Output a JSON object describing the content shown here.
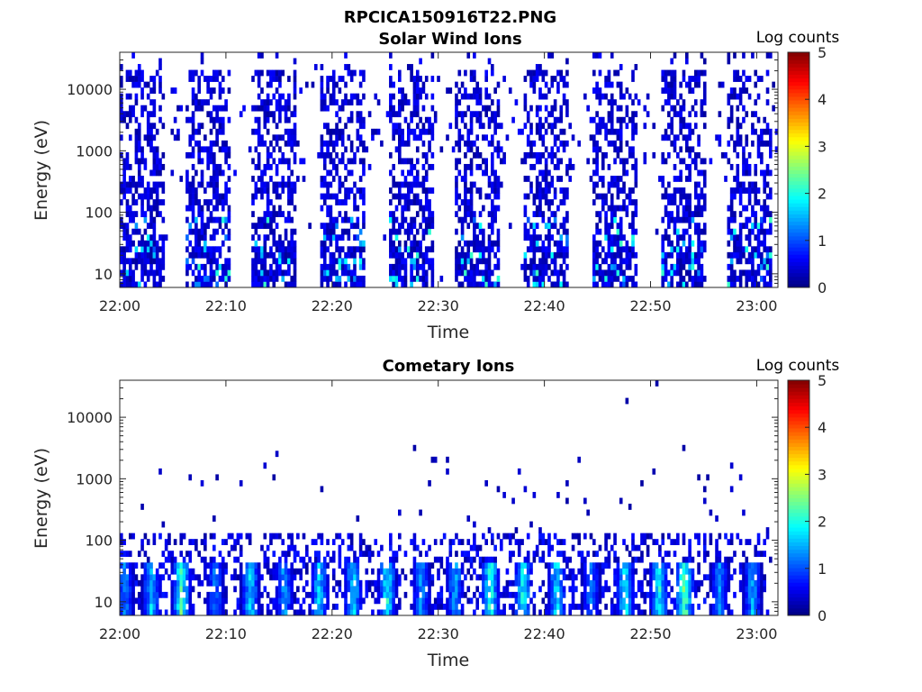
{
  "figure_title": "RPCICA150916T22.PNG",
  "chart_data": [
    {
      "type": "heatmap",
      "title": "Solar Wind Ions",
      "xlabel": "Time",
      "ylabel": "Energy (eV)",
      "x_ticks": [
        "22:00",
        "22:10",
        "22:20",
        "22:30",
        "22:40",
        "22:50",
        "23:00"
      ],
      "x_tick_minutes": [
        0,
        10,
        20,
        30,
        40,
        50,
        60
      ],
      "xlim_minutes": [
        0,
        62
      ],
      "y_scale": "log",
      "y_ticks": [
        "10",
        "100",
        "1000",
        "10000"
      ],
      "y_tick_values": [
        10,
        100,
        1000,
        10000
      ],
      "ylim": [
        6,
        40000
      ],
      "colorbar": {
        "label": "Log counts",
        "ticks": [
          "0",
          "1",
          "2",
          "3",
          "4",
          "5"
        ],
        "range": [
          0,
          5
        ],
        "colormap": "jet"
      },
      "sweep_centers_minutes": [
        2,
        8.3,
        14.6,
        21,
        27.4,
        33.7,
        40.2,
        46.6,
        53,
        59.2
      ],
      "sweep_width_minutes": 4.2,
      "sparse_energy_range_eV": [
        300,
        15000
      ],
      "peak_log_counts": 2.2
    },
    {
      "type": "heatmap",
      "title": "Cometary Ions",
      "xlabel": "Time",
      "ylabel": "Energy (eV)",
      "x_ticks": [
        "22:00",
        "22:10",
        "22:20",
        "22:30",
        "22:40",
        "22:50",
        "23:00"
      ],
      "x_tick_minutes": [
        0,
        10,
        20,
        30,
        40,
        50,
        60
      ],
      "xlim_minutes": [
        0,
        62
      ],
      "y_scale": "log",
      "y_ticks": [
        "10",
        "100",
        "1000",
        "10000"
      ],
      "y_tick_values": [
        10,
        100,
        1000,
        10000
      ],
      "ylim": [
        6,
        40000
      ],
      "colorbar": {
        "label": "Log counts",
        "ticks": [
          "0",
          "1",
          "2",
          "3",
          "4",
          "5"
        ],
        "range": [
          0,
          5
        ],
        "colormap": "jet"
      },
      "burst_centers_minutes": [
        0.5,
        3,
        5.8,
        9,
        12.3,
        15.5,
        18.8,
        22,
        25.2,
        28.4,
        31.6,
        34.9,
        38,
        41.2,
        44.4,
        47.6,
        50.8,
        53.2,
        56.5,
        59.6
      ],
      "burst_peak_log_counts": [
        1.6,
        2.0,
        2.7,
        1.5,
        2.1,
        1.8,
        2.0,
        2.2,
        2.3,
        1.7,
        1.8,
        2.5,
        2.4,
        2.2,
        1.5,
        2.3,
        2.4,
        2.9,
        1.6,
        1.8
      ],
      "core_energy_range_eV": [
        6,
        40
      ],
      "peak_log_counts": 2.9
    }
  ]
}
